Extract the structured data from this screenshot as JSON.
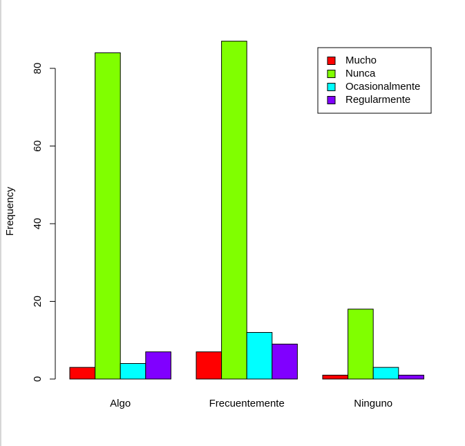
{
  "chart_data": {
    "type": "bar",
    "title": "",
    "xlabel": "",
    "ylabel": "Frequency",
    "ylim": [
      0,
      90
    ],
    "yticks": [
      0,
      20,
      40,
      60,
      80
    ],
    "grid": false,
    "legend_position": "top-right",
    "categories": [
      "Algo",
      "Frecuentemente",
      "Ninguno"
    ],
    "series": [
      {
        "name": "Mucho",
        "color": "#ff0000",
        "values": [
          3,
          7,
          1
        ]
      },
      {
        "name": "Nunca",
        "color": "#80ff00",
        "values": [
          84,
          87,
          18
        ]
      },
      {
        "name": "Ocasionalmente",
        "color": "#00ffff",
        "values": [
          4,
          12,
          3
        ]
      },
      {
        "name": "Regularmente",
        "color": "#8000ff",
        "values": [
          7,
          9,
          1
        ]
      }
    ]
  }
}
